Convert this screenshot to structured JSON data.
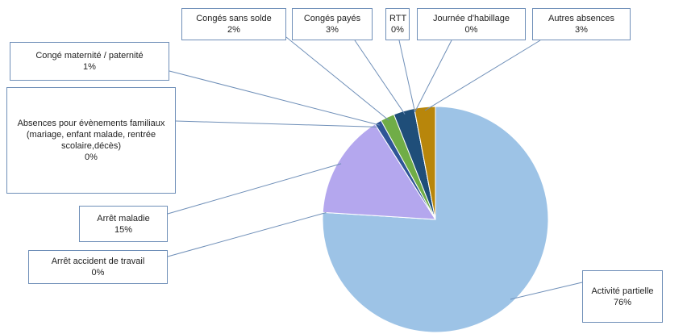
{
  "chart_data": {
    "type": "pie",
    "categories": [
      "Activité partielle",
      "Arrêt accident de travail",
      "Arrêt maladie",
      "Absences pour évènements familiaux (mariage, enfant malade, rentrée scolaire,décès)",
      "Congé maternité / paternité",
      "Congés sans solde",
      "Congés payés",
      "RTT",
      "Journée d'habillage",
      "Autres absences"
    ],
    "values": [
      76,
      0,
      15,
      0,
      1,
      2,
      3,
      0,
      0,
      3
    ],
    "value_labels": [
      "76%",
      "0%",
      "15%",
      "0%",
      "1%",
      "2%",
      "3%",
      "0%",
      "0%",
      "3%"
    ],
    "colors": [
      "#9dc3e6",
      "#c00000",
      "#b4a7ee",
      "#7f6000",
      "#2f5597",
      "#70ad47",
      "#1f4e79",
      "#a5a5a5",
      "#ffc000",
      "#b8860b"
    ]
  }
}
